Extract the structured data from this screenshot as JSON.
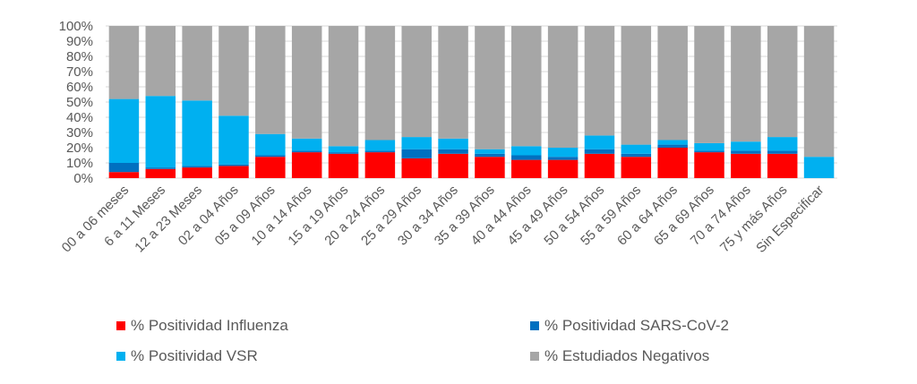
{
  "chart_data": {
    "type": "bar",
    "stacked": true,
    "percent": true,
    "ylim": [
      0,
      100
    ],
    "yticks": [
      "0%",
      "10%",
      "20%",
      "30%",
      "40%",
      "50%",
      "60%",
      "70%",
      "80%",
      "90%",
      "100%"
    ],
    "grid": true,
    "legend_position": "bottom",
    "categories": [
      "00 a 06 meses",
      "6 a 11 Meses",
      "12 a 23 Meses",
      "02 a 04 Años",
      "05 a 09 Años",
      "10 a 14 Años",
      "15 a 19 Años",
      "20 a 24 Años",
      "25 a 29 Años",
      "30 a 34 Años",
      "35 a 39 Años",
      "40 a 44 Años",
      "45 a 49 Años",
      "50 a 54 Años",
      "55 a 59 Años",
      "60 a 64 Años",
      "65 a 69 Años",
      "70 a 74 Años",
      "75 y más Años",
      "Sin Especificar"
    ],
    "series": [
      {
        "name": "% Positividad Influenza",
        "color": "#ff0000",
        "values": [
          4,
          6,
          7,
          8,
          14,
          17,
          16,
          17,
          13,
          16,
          14,
          12,
          12,
          16,
          14,
          20,
          17,
          16,
          16,
          0
        ]
      },
      {
        "name": "% Positividad SARS-CoV-2",
        "color": "#0070c0",
        "values": [
          6,
          1,
          1,
          1,
          1,
          1,
          1,
          1,
          6,
          3,
          2,
          3,
          2,
          3,
          2,
          2,
          1,
          2,
          2,
          0
        ]
      },
      {
        "name": "% Positividad VSR",
        "color": "#00b0f0",
        "values": [
          42,
          47,
          43,
          32,
          14,
          8,
          4,
          7,
          8,
          7,
          3,
          6,
          6,
          9,
          6,
          3,
          5,
          6,
          9,
          14
        ]
      },
      {
        "name": "% Estudiados Negativos",
        "color": "#a6a6a6",
        "values": [
          48,
          46,
          49,
          59,
          71,
          74,
          79,
          75,
          73,
          74,
          81,
          79,
          80,
          72,
          78,
          75,
          77,
          76,
          73,
          86
        ]
      }
    ]
  }
}
